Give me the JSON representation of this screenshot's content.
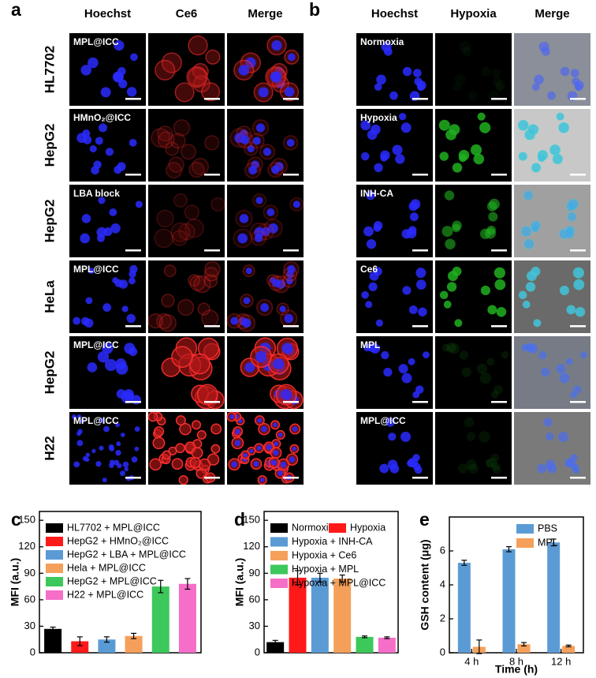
{
  "panel_a": {
    "letter": "a",
    "columns": [
      "Hoechst",
      "Ce6",
      "Merge"
    ],
    "rows": [
      {
        "label": "HL7702",
        "treatment": "MPL@ICC"
      },
      {
        "label": "HepG2",
        "treatment": "HMnO₂@ICC"
      },
      {
        "label": "HepG2",
        "treatment": "LBA block"
      },
      {
        "label": "HeLa",
        "treatment": "MPL@ICC"
      },
      {
        "label": "HepG2",
        "treatment": "MPL@ICC"
      },
      {
        "label": "H22",
        "treatment": "MPL@ICC"
      }
    ]
  },
  "panel_b": {
    "letter": "b",
    "columns": [
      "Hoechst",
      "Hypoxia",
      "Merge"
    ],
    "rows": [
      {
        "treatment": "Normoxia"
      },
      {
        "treatment": "Hypoxia"
      },
      {
        "treatment": "INH-CA"
      },
      {
        "treatment": "Ce6"
      },
      {
        "treatment": "MPL"
      },
      {
        "treatment": "MPL@ICC"
      }
    ]
  },
  "chart_data": [
    {
      "letter": "c",
      "type": "bar",
      "y_label": "MFI (a.u.)",
      "categories": [
        "HL7702 + MPL@ICC",
        "HepG2 + HMnO₂@ICC",
        "HepG2 + LBA + MPL@ICC",
        "Hela + MPL@ICC",
        "HepG2 + MPL@ICC",
        "H22 + MPL@ICC"
      ],
      "colors": [
        "#000000",
        "#ff1a1a",
        "#5b9bd5",
        "#f5a05a",
        "#3cc85a",
        "#f56ec8"
      ],
      "values": [
        27,
        13,
        15,
        19,
        75,
        78
      ],
      "errors": [
        2,
        5,
        3,
        3,
        7,
        6
      ],
      "ylim": [
        0,
        160
      ],
      "yticks": [
        0,
        30,
        60,
        90,
        120,
        150
      ]
    },
    {
      "letter": "d",
      "type": "bar",
      "y_label": "MFI (a.u.)",
      "categories": [
        "Normoxia",
        "Hypoxia",
        "Hypoxia + INH-CA",
        "Hypoxia + Ce6",
        "Hypoxia + MPL",
        "Hypoxia + MPL@ICC"
      ],
      "colors": [
        "#000000",
        "#ff1a1a",
        "#5b9bd5",
        "#f5a05a",
        "#3cc85a",
        "#f56ec8"
      ],
      "values": [
        12,
        85,
        85,
        84,
        18,
        17
      ],
      "errors": [
        2,
        8,
        5,
        4,
        1,
        1
      ],
      "ylim": [
        0,
        160
      ],
      "yticks": [
        0,
        30,
        60,
        90,
        120,
        150
      ]
    },
    {
      "letter": "e",
      "type": "grouped_bar",
      "y_label": "GSH content (μg)",
      "x_label": "Time (h)",
      "categories": [
        "4 h",
        "8 h",
        "12 h"
      ],
      "series": [
        {
          "name": "PBS",
          "color": "#5b9bd5",
          "values": [
            5.3,
            6.1,
            6.5
          ],
          "errors": [
            0.15,
            0.15,
            0.2
          ]
        },
        {
          "name": "MPL",
          "color": "#f5a05a",
          "values": [
            0.35,
            0.5,
            0.4
          ],
          "errors": [
            0.4,
            0.1,
            0.05
          ]
        }
      ],
      "ylim": [
        0,
        8
      ],
      "yticks": [
        0,
        2,
        4,
        6
      ]
    }
  ]
}
